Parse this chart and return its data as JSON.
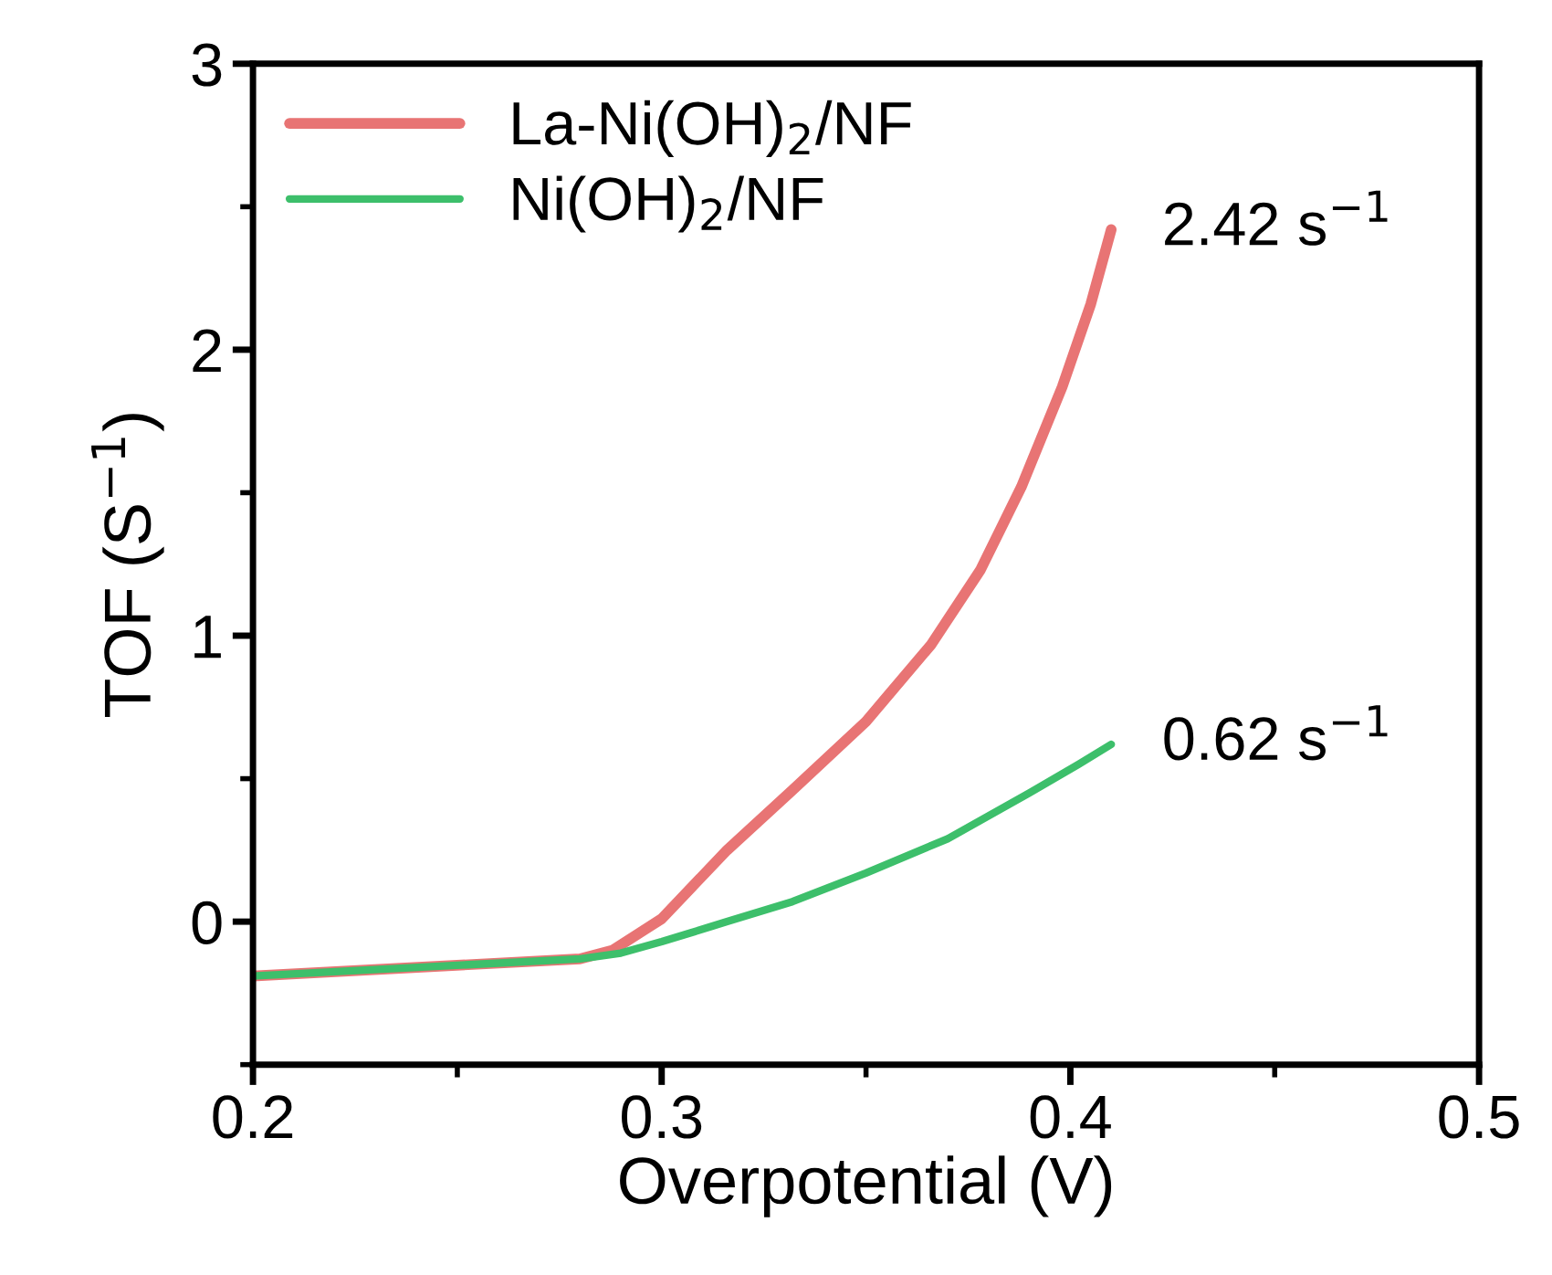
{
  "chart_data": {
    "type": "line",
    "xlabel": "Overpotential (V)",
    "ylabel": "TOF (S$^{−1}$)",
    "xlim": [
      0.2,
      0.5
    ],
    "xticks": [
      0.2,
      0.3,
      0.4,
      0.5
    ],
    "ylim": [
      -0.5,
      3
    ],
    "yticks": [
      0,
      1,
      2,
      3
    ],
    "legend": "top left",
    "grid": false,
    "series": [
      {
        "name": "La-Ni(OH)$_{2}$/NF",
        "color": "#e87474",
        "x": [
          0.2,
          0.28,
          0.288,
          0.3,
          0.316,
          0.332,
          0.35,
          0.366,
          0.378,
          0.388,
          0.398,
          0.405,
          0.41
        ],
        "values": [
          -0.19,
          -0.13,
          -0.1,
          0.01,
          0.25,
          0.46,
          0.7,
          0.97,
          1.23,
          1.52,
          1.87,
          2.16,
          2.42
        ]
      },
      {
        "name": "Ni(OH)$_{2}$/NF",
        "color": "#3dbf6b",
        "x": [
          0.2,
          0.28,
          0.29,
          0.3,
          0.316,
          0.332,
          0.35,
          0.37,
          0.39,
          0.402,
          0.41
        ],
        "values": [
          -0.19,
          -0.13,
          -0.11,
          -0.07,
          0,
          0.07,
          0.17,
          0.29,
          0.45,
          0.55,
          0.62
        ]
      }
    ],
    "annotations": [
      {
        "text": "2.42 s$^{−1}$",
        "x": 0.41,
        "y": 2.42
      },
      {
        "text": "0.62 s$^{−1}$",
        "x": 0.41,
        "y": 0.62
      }
    ]
  }
}
